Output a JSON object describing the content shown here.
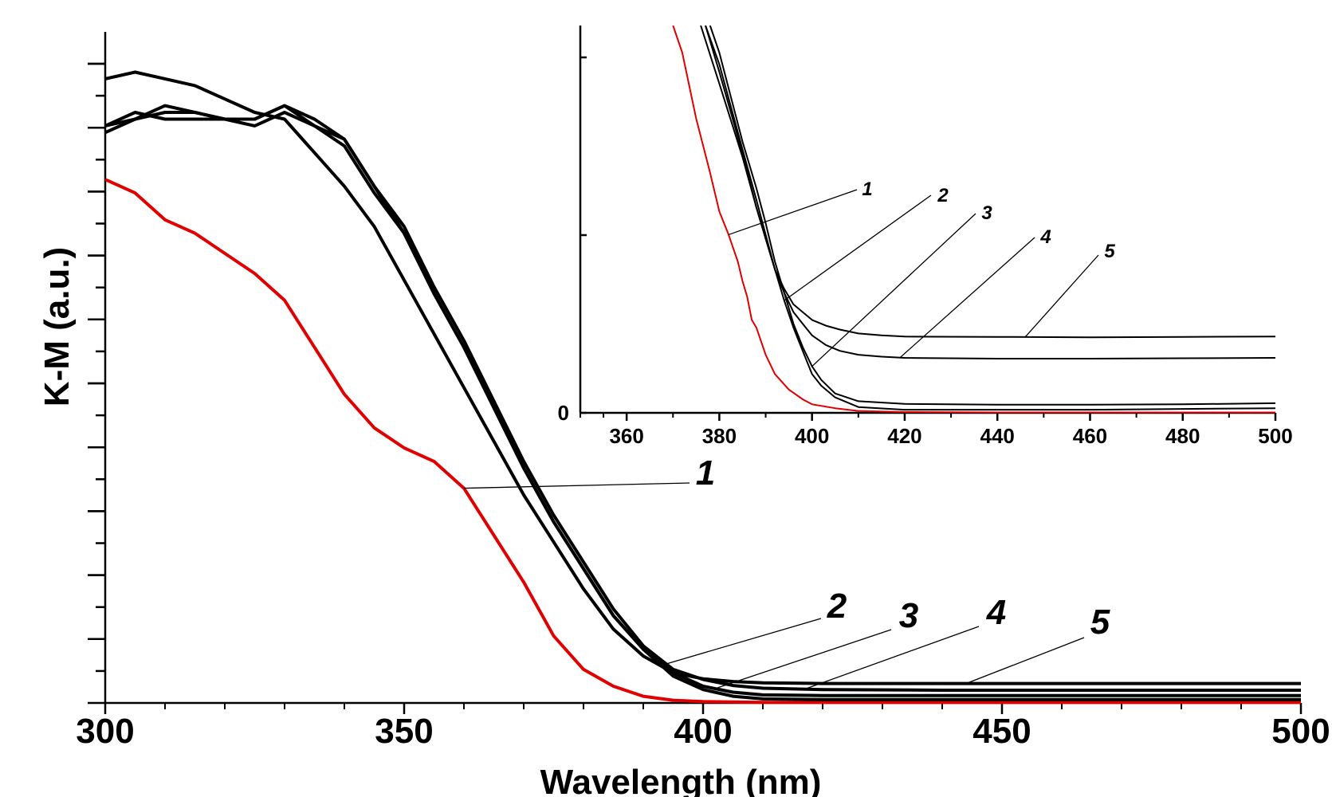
{
  "chart_data": [
    {
      "type": "line",
      "xlabel": "Wavelength (nm)",
      "ylabel": "K-M (a.u.)",
      "xlim": [
        300,
        500
      ],
      "ylim": [
        0,
        1
      ],
      "x_ticks": [
        "300",
        "350",
        "400",
        "450",
        "500"
      ],
      "grid": false,
      "series": [
        {
          "name": "1",
          "color": "#e00000",
          "x": [
            300,
            305,
            310,
            315,
            320,
            325,
            330,
            335,
            340,
            345,
            350,
            355,
            360,
            365,
            370,
            375,
            380,
            385,
            390,
            395,
            400,
            410,
            420,
            440,
            460,
            480,
            500
          ],
          "y": [
            0.78,
            0.76,
            0.72,
            0.7,
            0.67,
            0.64,
            0.6,
            0.53,
            0.46,
            0.41,
            0.38,
            0.36,
            0.32,
            0.25,
            0.18,
            0.1,
            0.05,
            0.025,
            0.01,
            0.004,
            0.002,
            0.001,
            0.001,
            0.001,
            0.001,
            0.001,
            0.001
          ]
        },
        {
          "name": "2",
          "color": "#000000",
          "x": [
            300,
            305,
            310,
            315,
            320,
            325,
            330,
            335,
            340,
            345,
            350,
            355,
            360,
            365,
            370,
            375,
            380,
            385,
            390,
            395,
            400,
            405,
            410,
            420,
            440,
            460,
            480,
            500
          ],
          "y": [
            0.86,
            0.88,
            0.87,
            0.87,
            0.87,
            0.87,
            0.89,
            0.87,
            0.84,
            0.77,
            0.7,
            0.61,
            0.53,
            0.44,
            0.35,
            0.27,
            0.2,
            0.13,
            0.08,
            0.04,
            0.02,
            0.01,
            0.006,
            0.005,
            0.005,
            0.005,
            0.005,
            0.005
          ]
        },
        {
          "name": "3",
          "color": "#000000",
          "x": [
            300,
            305,
            310,
            315,
            320,
            325,
            330,
            335,
            340,
            345,
            350,
            355,
            360,
            365,
            370,
            375,
            380,
            385,
            390,
            395,
            400,
            405,
            410,
            420,
            440,
            460,
            480,
            500
          ],
          "y": [
            0.86,
            0.87,
            0.89,
            0.88,
            0.87,
            0.86,
            0.88,
            0.86,
            0.83,
            0.76,
            0.7,
            0.61,
            0.53,
            0.44,
            0.35,
            0.27,
            0.2,
            0.13,
            0.08,
            0.045,
            0.025,
            0.016,
            0.012,
            0.011,
            0.011,
            0.011,
            0.011,
            0.011
          ]
        },
        {
          "name": "4",
          "color": "#000000",
          "x": [
            300,
            305,
            310,
            315,
            320,
            325,
            330,
            335,
            340,
            345,
            350,
            355,
            360,
            365,
            370,
            375,
            380,
            385,
            390,
            395,
            400,
            405,
            410,
            420,
            440,
            460,
            480,
            500
          ],
          "y": [
            0.85,
            0.87,
            0.88,
            0.88,
            0.87,
            0.87,
            0.89,
            0.86,
            0.84,
            0.77,
            0.71,
            0.62,
            0.54,
            0.45,
            0.36,
            0.28,
            0.21,
            0.14,
            0.085,
            0.05,
            0.035,
            0.026,
            0.022,
            0.02,
            0.019,
            0.019,
            0.019,
            0.019
          ]
        },
        {
          "name": "5",
          "color": "#000000",
          "x": [
            300,
            305,
            310,
            315,
            320,
            325,
            330,
            335,
            340,
            345,
            350,
            355,
            360,
            365,
            370,
            375,
            380,
            385,
            390,
            395,
            400,
            405,
            410,
            420,
            440,
            460,
            480,
            500
          ],
          "y": [
            0.93,
            0.94,
            0.93,
            0.92,
            0.9,
            0.88,
            0.87,
            0.82,
            0.77,
            0.71,
            0.63,
            0.55,
            0.47,
            0.39,
            0.31,
            0.24,
            0.17,
            0.11,
            0.07,
            0.045,
            0.036,
            0.032,
            0.03,
            0.029,
            0.029,
            0.029,
            0.029,
            0.029
          ]
        }
      ],
      "annotations": [
        {
          "text": "1",
          "series": "1",
          "at_x": 360
        },
        {
          "text": "2",
          "series": "2",
          "at_x": 393
        },
        {
          "text": "3",
          "series": "3",
          "at_x": 402
        },
        {
          "text": "4",
          "series": "4",
          "at_x": 417
        },
        {
          "text": "5",
          "series": "5",
          "at_x": 444
        }
      ]
    },
    {
      "type": "line",
      "role": "inset",
      "xlim": [
        350,
        500
      ],
      "ylim": [
        0,
        1
      ],
      "x_ticks": [
        "360",
        "380",
        "400",
        "420",
        "440",
        "460",
        "480",
        "500"
      ],
      "y_ticks": [
        "0"
      ],
      "grid": false,
      "series": [
        {
          "name": "1",
          "color": "#e00000",
          "x": [
            370,
            372,
            375,
            378,
            380,
            382,
            384,
            385,
            386,
            387,
            388,
            390,
            392,
            395,
            398,
            400,
            405,
            410,
            420,
            440,
            460,
            480,
            500
          ],
          "y": [
            1.0,
            0.93,
            0.76,
            0.62,
            0.52,
            0.46,
            0.39,
            0.34,
            0.3,
            0.24,
            0.22,
            0.15,
            0.1,
            0.06,
            0.035,
            0.022,
            0.012,
            0.005,
            0.002,
            0.001,
            0.001,
            0.001,
            0.001
          ]
        },
        {
          "name": "2",
          "color": "#000000",
          "x": [
            377,
            380,
            385,
            388,
            390,
            392,
            394,
            396,
            398,
            400,
            402,
            405,
            410,
            420,
            440,
            460,
            480,
            500
          ],
          "y": [
            1.0,
            0.9,
            0.68,
            0.55,
            0.46,
            0.37,
            0.29,
            0.22,
            0.16,
            0.1,
            0.07,
            0.04,
            0.015,
            0.008,
            0.008,
            0.008,
            0.01,
            0.012
          ]
        },
        {
          "name": "3",
          "color": "#000000",
          "x": [
            378,
            380,
            385,
            388,
            390,
            392,
            394,
            396,
            398,
            400,
            402,
            405,
            410,
            420,
            440,
            460,
            480,
            500
          ],
          "y": [
            1.0,
            0.93,
            0.7,
            0.58,
            0.49,
            0.39,
            0.31,
            0.23,
            0.17,
            0.12,
            0.085,
            0.05,
            0.03,
            0.023,
            0.021,
            0.021,
            0.022,
            0.025
          ]
        },
        {
          "name": "4",
          "color": "#000000",
          "x": [
            376,
            380,
            385,
            388,
            390,
            392,
            394,
            396,
            398,
            400,
            403,
            406,
            410,
            415,
            420,
            440,
            460,
            480,
            500
          ],
          "y": [
            1.0,
            0.85,
            0.66,
            0.53,
            0.45,
            0.37,
            0.31,
            0.26,
            0.23,
            0.2,
            0.175,
            0.16,
            0.15,
            0.145,
            0.142,
            0.14,
            0.14,
            0.141,
            0.142
          ]
        },
        {
          "name": "5",
          "color": "#000000",
          "x": [
            377,
            380,
            385,
            388,
            390,
            392,
            394,
            396,
            398,
            400,
            403,
            406,
            410,
            415,
            420,
            440,
            460,
            480,
            500
          ],
          "y": [
            1.0,
            0.88,
            0.67,
            0.53,
            0.45,
            0.37,
            0.32,
            0.28,
            0.26,
            0.24,
            0.225,
            0.215,
            0.205,
            0.2,
            0.197,
            0.196,
            0.195,
            0.196,
            0.197
          ]
        }
      ],
      "annotations": [
        {
          "text": "1",
          "series": "1",
          "at_x": 382
        },
        {
          "text": "2",
          "series": "2",
          "at_x": 394
        },
        {
          "text": "3",
          "series": "3",
          "at_x": 400
        },
        {
          "text": "4",
          "series": "4",
          "at_x": 419
        },
        {
          "text": "5",
          "series": "5",
          "at_x": 446
        }
      ]
    }
  ]
}
